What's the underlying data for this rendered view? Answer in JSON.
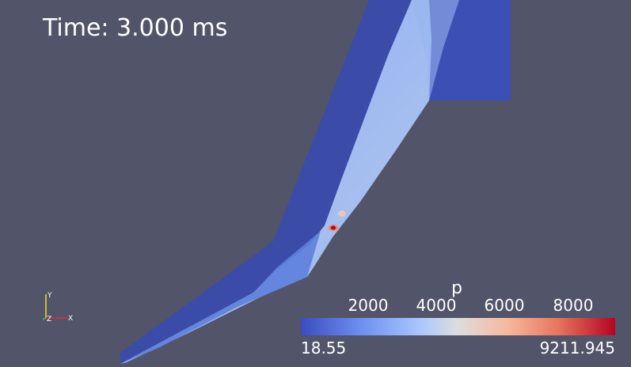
{
  "time_annotation": "Time: 3.000 ms",
  "colorbar": {
    "title": "p",
    "ticks": [
      "2000",
      "4000",
      "6000",
      "8000"
    ],
    "tick_values": [
      2000,
      4000,
      6000,
      8000
    ],
    "range_min": 18.55,
    "range_max": 9211.945,
    "min_label": "18.55",
    "max_label": "9211.945",
    "colormap": "cool-to-warm"
  },
  "orientation_axes": {
    "x_label": "X",
    "y_label": "Y",
    "z_label": "Z",
    "x_color": "#e03030",
    "y_color": "#e8e020",
    "z_color": "#30d030"
  },
  "colors": {
    "background": "#525469",
    "low": "#3b4cc0",
    "high": "#b40426"
  }
}
